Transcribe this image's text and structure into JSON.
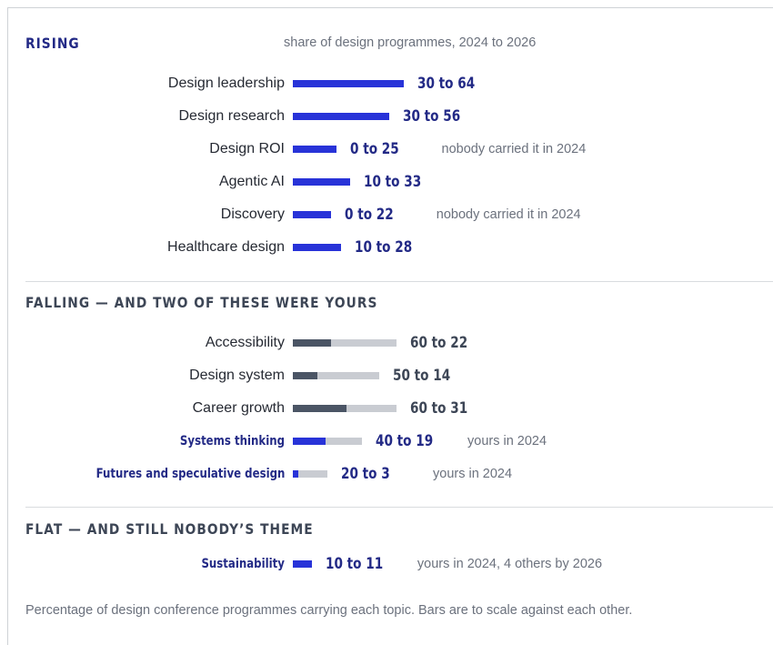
{
  "sections": {
    "rising": {
      "heading": "RISING",
      "subtitle": "share of design programmes, 2024 to 2026"
    },
    "falling": {
      "heading": "FALLING — AND TWO OF THESE WERE YOURS"
    },
    "flat": {
      "heading": "FLAT — AND STILL NOBODY’S THEME"
    }
  },
  "footnote": "Percentage of design conference programmes carrying each topic. Bars are to scale against each other.",
  "colors": {
    "rising_bar": "#2833d8",
    "falling_2024": "#4b5565",
    "falling_2026": "#c9ccd2",
    "yours_label": "#232a86"
  },
  "chart_data": {
    "type": "bar",
    "unit": "percent",
    "years": [
      2024,
      2026
    ],
    "groups": [
      {
        "group": "rising",
        "rows": [
          {
            "label": "Design leadership",
            "v2024": 30,
            "v2026": 64,
            "value_text": "30 to 64",
            "note": "",
            "yours": false
          },
          {
            "label": "Design research",
            "v2024": 30,
            "v2026": 56,
            "value_text": "30 to 56",
            "note": "",
            "yours": false
          },
          {
            "label": "Design ROI",
            "v2024": 0,
            "v2026": 25,
            "value_text": "0 to 25",
            "note": "nobody carried it in 2024",
            "yours": false
          },
          {
            "label": "Agentic AI",
            "v2024": 10,
            "v2026": 33,
            "value_text": "10 to 33",
            "note": "",
            "yours": false
          },
          {
            "label": "Discovery",
            "v2024": 0,
            "v2026": 22,
            "value_text": "0 to 22",
            "note": "nobody carried it in 2024",
            "yours": false
          },
          {
            "label": "Healthcare design",
            "v2024": 10,
            "v2026": 28,
            "value_text": "10 to 28",
            "note": "",
            "yours": false
          }
        ]
      },
      {
        "group": "falling",
        "rows": [
          {
            "label": "Accessibility",
            "v2024": 60,
            "v2026": 22,
            "value_text": "60 to 22",
            "note": "",
            "yours": false
          },
          {
            "label": "Design system",
            "v2024": 50,
            "v2026": 14,
            "value_text": "50 to 14",
            "note": "",
            "yours": false
          },
          {
            "label": "Career growth",
            "v2024": 60,
            "v2026": 31,
            "value_text": "60 to 31",
            "note": "",
            "yours": false
          },
          {
            "label": "Systems thinking",
            "v2024": 40,
            "v2026": 19,
            "value_text": "40 to 19",
            "note": "yours in 2024",
            "yours": true
          },
          {
            "label": "Futures and speculative design",
            "v2024": 20,
            "v2026": 3,
            "value_text": "20 to 3",
            "note": "yours in 2024",
            "yours": true
          }
        ]
      },
      {
        "group": "flat",
        "rows": [
          {
            "label": "Sustainability",
            "v2024": 10,
            "v2026": 11,
            "value_text": "10 to 11",
            "note": "yours in 2024, 4 others by 2026",
            "yours": true
          }
        ]
      }
    ]
  }
}
